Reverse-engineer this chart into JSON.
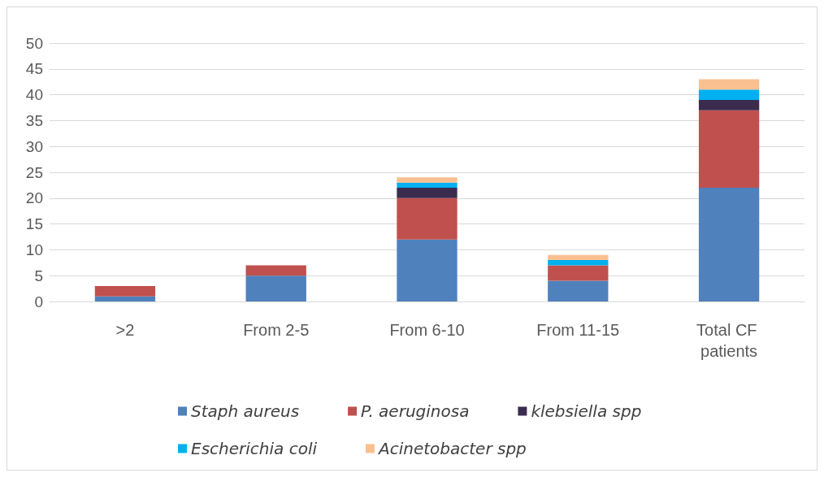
{
  "chart_data": {
    "type": "bar",
    "stacked": true,
    "categories": [
      ">2",
      "From 2-5",
      "From 6-10",
      "From 11-15",
      "Total CF patients"
    ],
    "series": [
      {
        "name": "Staph aureus",
        "color": "#4f81bd",
        "values": [
          1,
          5,
          12,
          4,
          22
        ]
      },
      {
        "name": "P. aeruginosa",
        "color": "#c0504d",
        "values": [
          2,
          2,
          8,
          3,
          15
        ]
      },
      {
        "name": "klebsiella spp",
        "color": "#3b2c4f",
        "values": [
          0,
          0,
          2,
          0,
          2
        ]
      },
      {
        "name": "Escherichia coli",
        "color": "#00b0f0",
        "values": [
          0,
          0,
          1,
          1,
          2
        ]
      },
      {
        "name": "Acinetobacter spp",
        "color": "#fac090",
        "values": [
          0,
          0,
          1,
          1,
          2
        ]
      }
    ],
    "ylim": [
      0,
      50
    ],
    "yticks": [
      0,
      5,
      10,
      15,
      20,
      25,
      30,
      35,
      40,
      45,
      50
    ],
    "grid": "y",
    "legend": "bottom"
  }
}
